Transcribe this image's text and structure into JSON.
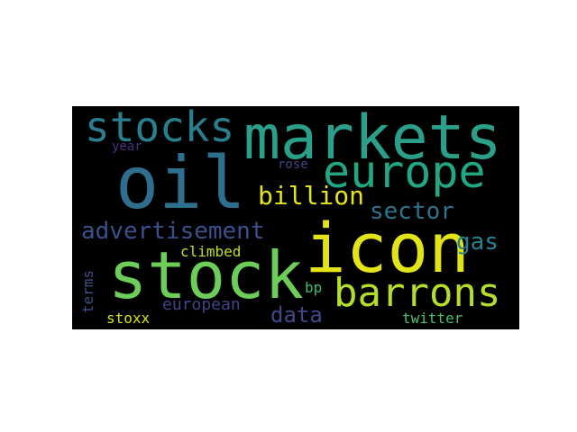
{
  "word_cloud": {
    "background": "#000000",
    "words": [
      {
        "id": "markets",
        "text": "markets",
        "color": "#2aa08a"
      },
      {
        "id": "oil",
        "text": "oil",
        "color": "#2f6f8e"
      },
      {
        "id": "icon",
        "text": "icon",
        "color": "#e2e418"
      },
      {
        "id": "stock",
        "text": "stock",
        "color": "#6ccd59"
      },
      {
        "id": "europe",
        "text": "europe",
        "color": "#22a785"
      },
      {
        "id": "stocks",
        "text": "stocks",
        "color": "#2a7f8e"
      },
      {
        "id": "barrons",
        "text": "barrons",
        "color": "#b5de2b"
      },
      {
        "id": "advertisement",
        "text": "advertisement",
        "color": "#3c508b"
      },
      {
        "id": "billion",
        "text": "billion",
        "color": "#e5e419"
      },
      {
        "id": "sector",
        "text": "sector",
        "color": "#2c738e"
      },
      {
        "id": "gas",
        "text": "gas",
        "color": "#26828e"
      },
      {
        "id": "data",
        "text": "data",
        "color": "#3f4889"
      },
      {
        "id": "climbed",
        "text": "climbed",
        "color": "#bddf26"
      },
      {
        "id": "european",
        "text": "european",
        "color": "#414487"
      },
      {
        "id": "stoxx",
        "text": "stoxx",
        "color": "#d8e219"
      },
      {
        "id": "terms",
        "text": "terms",
        "color": "#3b528b"
      },
      {
        "id": "bp",
        "text": "bp",
        "color": "#3dbc74"
      },
      {
        "id": "twitter",
        "text": "twitter",
        "color": "#4ac16d"
      },
      {
        "id": "year",
        "text": "year",
        "color": "#46337e"
      },
      {
        "id": "rose",
        "text": "rose",
        "color": "#414487"
      }
    ]
  }
}
